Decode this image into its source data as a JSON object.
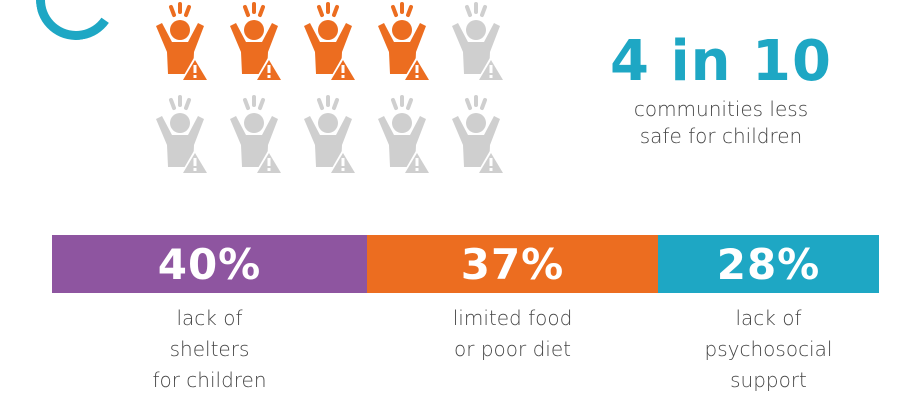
{
  "colors": {
    "orange": "#ec6d20",
    "gray": "#cfcfcf",
    "teal": "#1ea7c4",
    "purple": "#8e55a0"
  },
  "icon_name": "child-warning-icon",
  "icons": {
    "total": 10,
    "highlighted": 4
  },
  "headline": {
    "value": "4 in 10",
    "line1": "communities less",
    "line2": "safe for children"
  },
  "stats": [
    {
      "value": "40%",
      "share": 0.4,
      "color": "#8e55a0",
      "lines": [
        "lack of",
        "shelters",
        "for children"
      ]
    },
    {
      "value": "37%",
      "share": 0.37,
      "color": "#ec6d20",
      "lines": [
        "limited food",
        "or poor diet"
      ]
    },
    {
      "value": "28%",
      "share": 0.28,
      "color": "#1ea7c4",
      "lines": [
        "lack of",
        "psychosocial",
        "support"
      ]
    }
  ]
}
